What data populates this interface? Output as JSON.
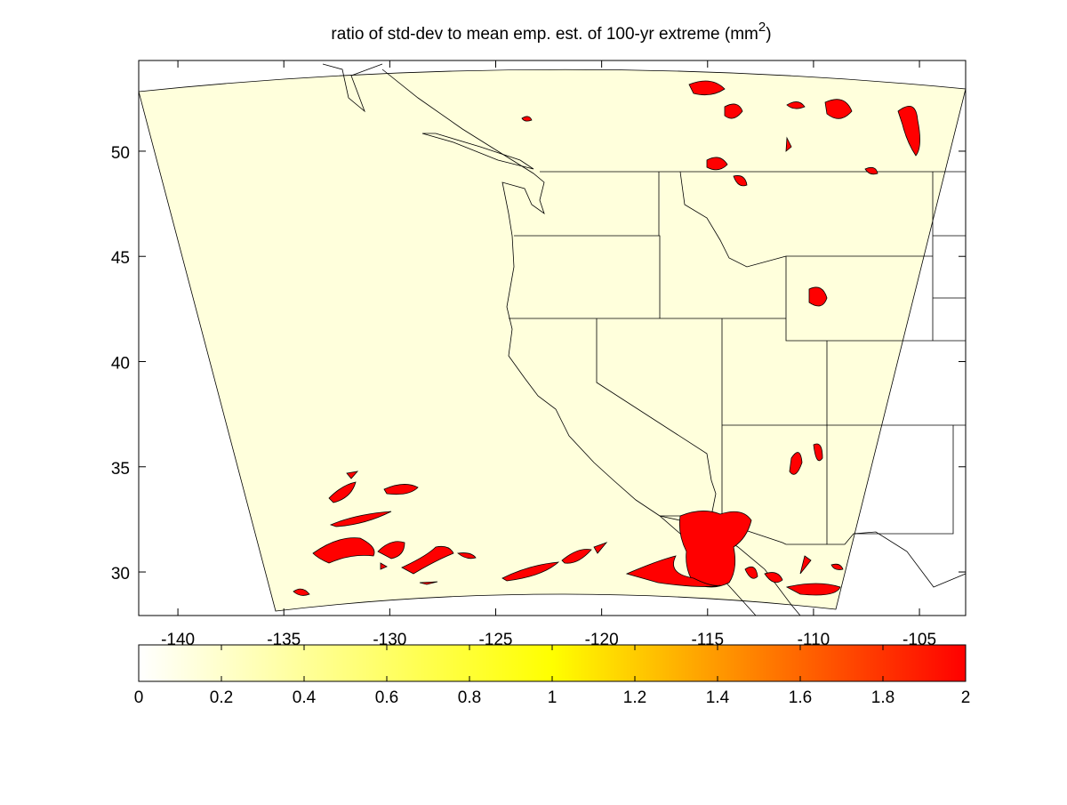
{
  "chart_data": {
    "type": "map",
    "title": "ratio of std-dev to mean emp. est. of 100-yr extreme (mm",
    "title_superscript": "2",
    "title_end": ")",
    "xlim": [
      -141.85,
      -102.82
    ],
    "xticks": [
      -140,
      -135,
      -130,
      -125,
      -120,
      -115,
      -110,
      -105
    ],
    "ylim": [
      27.93,
      54.31
    ],
    "yticks": [
      30,
      35,
      40,
      45,
      50
    ],
    "colorbar": {
      "clim": [
        0,
        2
      ],
      "ticks": [
        0,
        0.2,
        0.4,
        0.6,
        0.8,
        1,
        1.2,
        1.4,
        1.6,
        1.8,
        2
      ],
      "colormap": [
        "#ffffff",
        "#ffff00",
        "#ff0000"
      ]
    }
  }
}
